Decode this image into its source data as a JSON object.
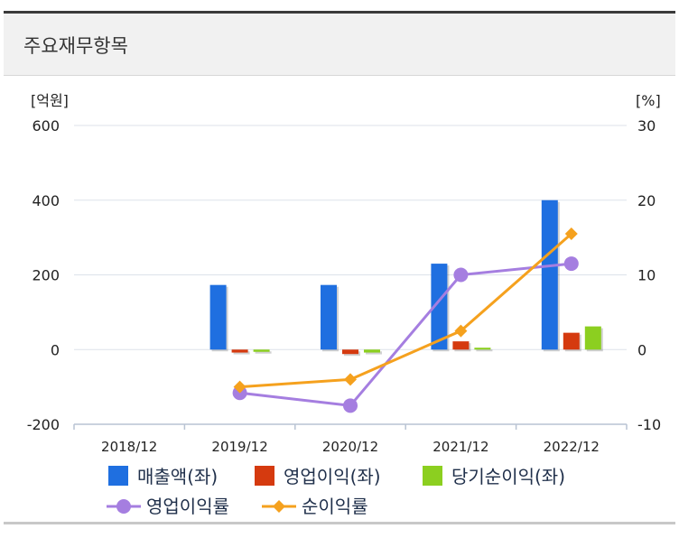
{
  "header": {
    "title": "주요재무항목"
  },
  "chart_data": {
    "type": "bar",
    "categories": [
      "2018/12",
      "2019/12",
      "2020/12",
      "2021/12",
      "2022/12"
    ],
    "y_left": {
      "unit_label": "[억원]",
      "ylim": [
        -200,
        600
      ],
      "ticks": [
        -200,
        0,
        200,
        400,
        600
      ]
    },
    "y_right": {
      "unit_label": "[%]",
      "ylim": [
        -10,
        30
      ],
      "ticks": [
        -10,
        0,
        10,
        20,
        30
      ]
    },
    "bar_series": [
      {
        "name": "매출액(좌)",
        "color": "#1f6fe0",
        "values": [
          null,
          173,
          173,
          230,
          400
        ]
      },
      {
        "name": "영업이익(좌)",
        "color": "#d53a0f",
        "values": [
          null,
          -8,
          -12,
          22,
          45
        ]
      },
      {
        "name": "당기순이익(좌)",
        "color": "#8ccf20",
        "values": [
          null,
          -6,
          -8,
          5,
          62
        ]
      }
    ],
    "line_series": [
      {
        "name": "영업이익률",
        "color": "#a57ee0",
        "marker": "circle",
        "values": [
          null,
          -5.8,
          -7.5,
          10,
          11.5
        ]
      },
      {
        "name": "순이익률",
        "color": "#f5a11e",
        "marker": "diamond",
        "values": [
          null,
          -5,
          -4,
          2.5,
          15.5
        ]
      }
    ],
    "grid": true,
    "legend_position": "bottom"
  }
}
